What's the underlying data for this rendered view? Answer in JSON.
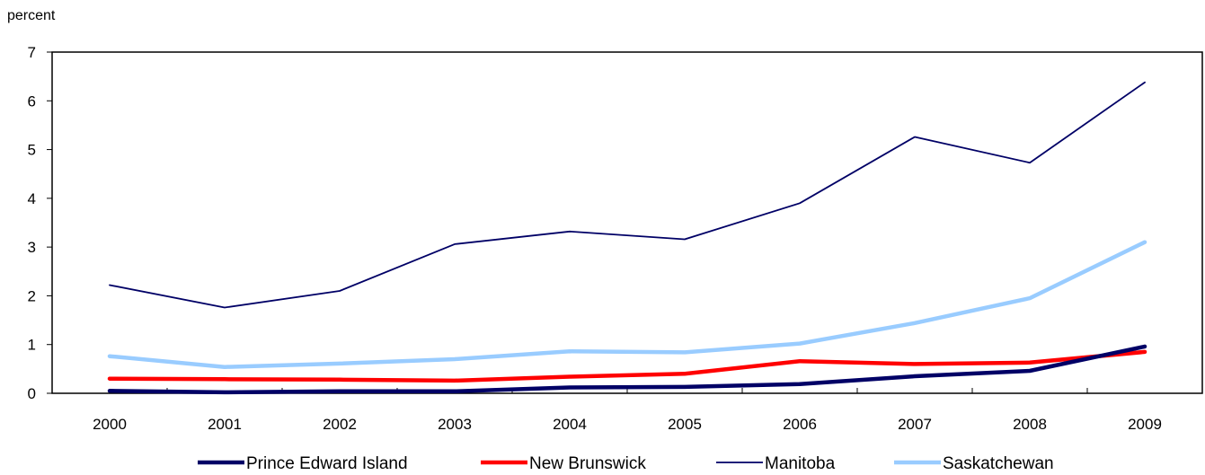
{
  "chart_data": {
    "type": "line",
    "title": "",
    "xlabel": "",
    "ylabel": "percent",
    "ylim": [
      0,
      7
    ],
    "yticks": [
      "0",
      "1",
      "2",
      "3",
      "4",
      "5",
      "6",
      "7"
    ],
    "categories": [
      "2000",
      "2001",
      "2002",
      "2003",
      "2004",
      "2005",
      "2006",
      "2007",
      "2008",
      "2009"
    ],
    "grid": false,
    "legend_position": "bottom",
    "series": [
      {
        "name": "Prince Edward Island",
        "color": "#000066",
        "style": "thick",
        "values": [
          0.05,
          0.02,
          0.04,
          0.04,
          0.12,
          0.13,
          0.19,
          0.35,
          0.46,
          0.96
        ]
      },
      {
        "name": "New Brunswick",
        "color": "#ff0000",
        "style": "thick",
        "values": [
          0.3,
          0.29,
          0.28,
          0.26,
          0.34,
          0.4,
          0.66,
          0.6,
          0.63,
          0.85
        ]
      },
      {
        "name": "Manitoba",
        "color": "#000066",
        "style": "thin",
        "values": [
          2.22,
          1.76,
          2.1,
          3.06,
          3.32,
          3.16,
          3.9,
          5.26,
          4.73,
          6.38
        ]
      },
      {
        "name": "Saskatchewan",
        "color": "#99ccff",
        "style": "thick",
        "values": [
          0.76,
          0.54,
          0.61,
          0.7,
          0.86,
          0.84,
          1.02,
          1.44,
          1.95,
          3.1
        ]
      }
    ]
  }
}
